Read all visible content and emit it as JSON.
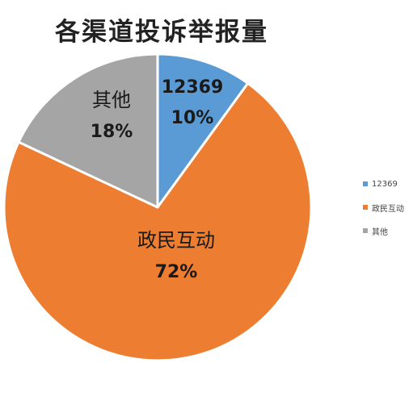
{
  "chart_data": {
    "type": "pie",
    "title": "各渠道投诉举报量",
    "categories": [
      "12369",
      "政民互动",
      "其他"
    ],
    "values": [
      10,
      72,
      18
    ],
    "data_labels": [
      {
        "name": "12369",
        "pct": "10%"
      },
      {
        "name": "政民互动",
        "pct": "72%"
      },
      {
        "name": "其他",
        "pct": "18%"
      }
    ],
    "colors": [
      "#5b9bd5",
      "#ed7d31",
      "#a5a5a5"
    ],
    "legend": {
      "position": "right",
      "items": [
        "12369",
        "政民互动",
        "其他"
      ]
    }
  }
}
